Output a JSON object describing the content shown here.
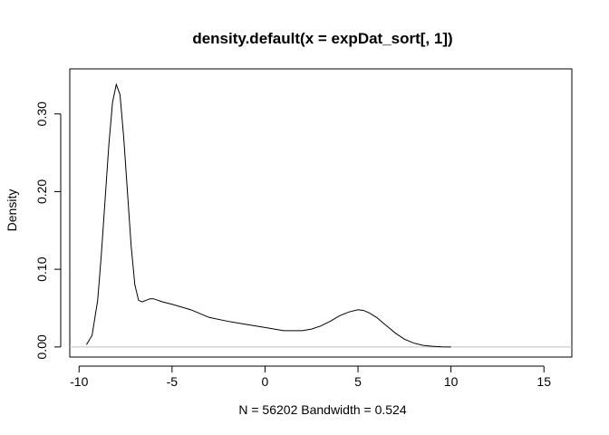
{
  "chart_data": {
    "type": "line",
    "title": "density.default(x = expDat_sort[, 1])",
    "xlabel": "N = 56202   Bandwidth = 0.524",
    "ylabel": "Density",
    "xlim": [
      -10.5,
      16.5
    ],
    "ylim": [
      -0.013,
      0.358
    ],
    "x_ticks": [
      -10,
      -5,
      0,
      5,
      10,
      15
    ],
    "x_tick_labels": [
      "-10",
      "-5",
      "0",
      "5",
      "10",
      "15"
    ],
    "y_ticks": [
      0.0,
      0.1,
      0.2,
      0.3
    ],
    "y_tick_labels": [
      "0.00",
      "0.10",
      "0.20",
      "0.30"
    ],
    "baseline": 0,
    "baseline_color": "#bebebe",
    "grid": false,
    "series": [
      {
        "name": "density",
        "color": "#000000",
        "x": [
          -9.6,
          -9.3,
          -9.0,
          -8.8,
          -8.6,
          -8.4,
          -8.2,
          -8.0,
          -7.8,
          -7.6,
          -7.4,
          -7.2,
          -7.0,
          -6.8,
          -6.6,
          -6.4,
          -6.2,
          -6.0,
          -5.5,
          -5.0,
          -4.0,
          -3.0,
          -2.0,
          -1.0,
          0.0,
          1.0,
          2.0,
          2.5,
          3.0,
          3.5,
          4.0,
          4.5,
          5.0,
          5.3,
          5.6,
          6.0,
          6.5,
          7.0,
          7.5,
          8.0,
          8.5,
          9.0,
          9.5,
          10.0
        ],
        "y": [
          0.003,
          0.015,
          0.06,
          0.12,
          0.19,
          0.26,
          0.315,
          0.338,
          0.325,
          0.27,
          0.2,
          0.13,
          0.08,
          0.06,
          0.058,
          0.06,
          0.062,
          0.062,
          0.058,
          0.055,
          0.048,
          0.038,
          0.033,
          0.029,
          0.025,
          0.021,
          0.021,
          0.023,
          0.027,
          0.033,
          0.04,
          0.045,
          0.048,
          0.047,
          0.044,
          0.038,
          0.028,
          0.018,
          0.01,
          0.005,
          0.002,
          0.0008,
          0.0002,
          0.0
        ]
      }
    ]
  }
}
